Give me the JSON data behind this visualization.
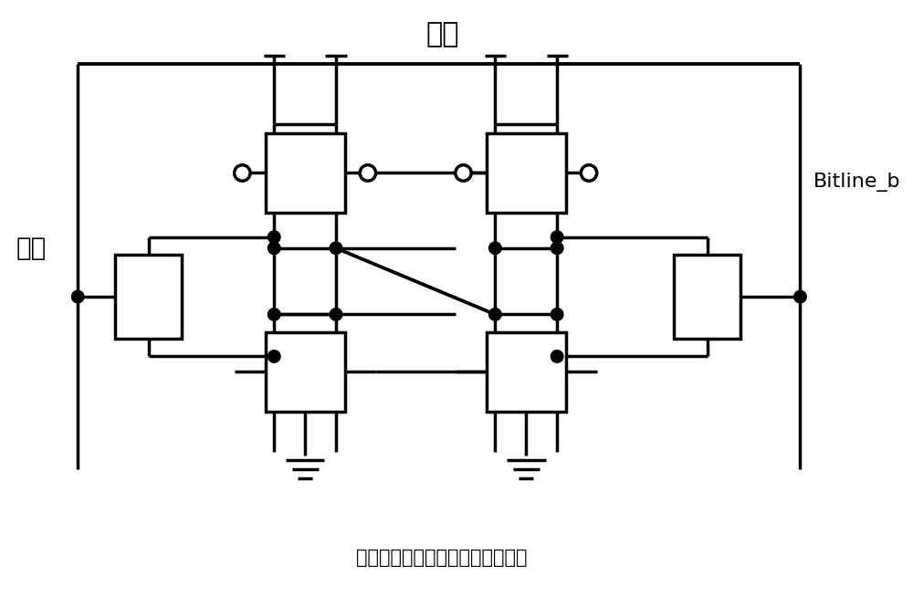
{
  "title_top": "字线",
  "title_bottom": "常规系结栅极静态随机存取存储器",
  "label_left": "位线",
  "label_right": "Bitline_b",
  "bg_color": "#ffffff",
  "line_color": "#000000",
  "lw": 2.5,
  "fig_width": 10.0,
  "fig_height": 6.54
}
